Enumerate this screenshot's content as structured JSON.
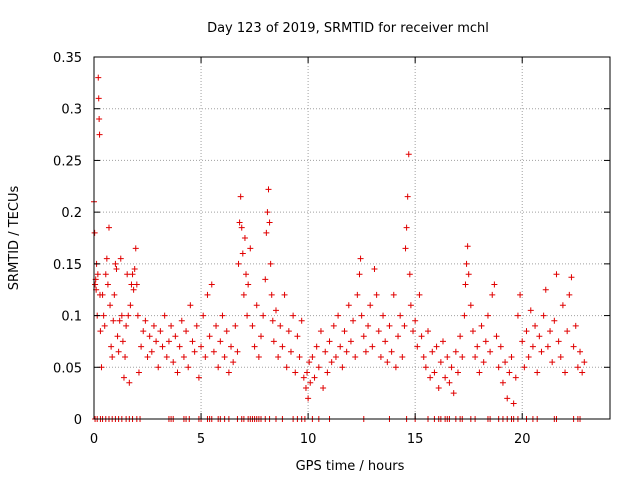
{
  "chart_data": {
    "type": "scatter",
    "title": "Day 123 of 2019, SRMTID for receiver mchl",
    "xlabel": "GPS time / hours",
    "ylabel": "SRMTID / TECUs",
    "xlim": [
      0,
      24.1
    ],
    "ylim": [
      0,
      0.35
    ],
    "xticks": [
      0,
      5,
      10,
      15,
      20
    ],
    "xtick_labels": [
      "0",
      "5",
      "10",
      "15",
      "20"
    ],
    "yticks": [
      0,
      0.05,
      0.1,
      0.15,
      0.2,
      0.25,
      0.3,
      0.35
    ],
    "ytick_labels": [
      "0",
      "0.05",
      "0.1",
      "0.15",
      "0.2",
      "0.25",
      "0.3",
      "0.35"
    ],
    "grid": true,
    "marker": "+",
    "color": "#e00000",
    "series": [
      {
        "name": "SRMTID",
        "points": [
          [
            0.0,
            0.21
          ],
          [
            0.03,
            0.18
          ],
          [
            0.05,
            0.13
          ],
          [
            0.08,
            0.135
          ],
          [
            0.1,
            0.125
          ],
          [
            0.12,
            0.15
          ],
          [
            0.15,
            0.1
          ],
          [
            0.18,
            0.14
          ],
          [
            0.2,
            0.33
          ],
          [
            0.22,
            0.31
          ],
          [
            0.24,
            0.29
          ],
          [
            0.26,
            0.275
          ],
          [
            0.28,
            0.12
          ],
          [
            0.3,
            0.085
          ],
          [
            0.35,
            0.05
          ],
          [
            0.4,
            0.12
          ],
          [
            0.45,
            0.1
          ],
          [
            0.5,
            0.09
          ],
          [
            0.55,
            0.14
          ],
          [
            0.6,
            0.155
          ],
          [
            0.65,
            0.13
          ],
          [
            0.7,
            0.185
          ],
          [
            0.75,
            0.11
          ],
          [
            0.8,
            0.07
          ],
          [
            0.85,
            0.06
          ],
          [
            0.9,
            0.095
          ],
          [
            0.95,
            0.12
          ],
          [
            1.0,
            0.15
          ],
          [
            1.05,
            0.145
          ],
          [
            1.1,
            0.08
          ],
          [
            1.15,
            0.065
          ],
          [
            1.2,
            0.095
          ],
          [
            1.25,
            0.155
          ],
          [
            1.3,
            0.1
          ],
          [
            1.35,
            0.075
          ],
          [
            1.4,
            0.04
          ],
          [
            1.45,
            0.06
          ],
          [
            1.5,
            0.09
          ],
          [
            1.55,
            0.14
          ],
          [
            1.6,
            0.1
          ],
          [
            1.65,
            0.035
          ],
          [
            1.7,
            0.11
          ],
          [
            1.75,
            0.13
          ],
          [
            1.8,
            0.14
          ],
          [
            1.85,
            0.125
          ],
          [
            1.9,
            0.145
          ],
          [
            1.95,
            0.165
          ],
          [
            2.0,
            0.13
          ],
          [
            2.05,
            0.1
          ],
          [
            2.1,
            0.045
          ],
          [
            2.2,
            0.07
          ],
          [
            2.3,
            0.085
          ],
          [
            2.4,
            0.095
          ],
          [
            2.5,
            0.06
          ],
          [
            2.6,
            0.08
          ],
          [
            2.7,
            0.065
          ],
          [
            2.8,
            0.09
          ],
          [
            2.9,
            0.075
          ],
          [
            3.0,
            0.05
          ],
          [
            3.1,
            0.085
          ],
          [
            3.2,
            0.07
          ],
          [
            3.3,
            0.1
          ],
          [
            3.4,
            0.06
          ],
          [
            3.5,
            0.075
          ],
          [
            3.6,
            0.09
          ],
          [
            3.7,
            0.055
          ],
          [
            3.8,
            0.08
          ],
          [
            3.9,
            0.045
          ],
          [
            4.0,
            0.07
          ],
          [
            4.1,
            0.095
          ],
          [
            4.2,
            0.06
          ],
          [
            4.3,
            0.085
          ],
          [
            4.4,
            0.05
          ],
          [
            4.5,
            0.11
          ],
          [
            4.6,
            0.075
          ],
          [
            4.7,
            0.065
          ],
          [
            4.8,
            0.09
          ],
          [
            4.9,
            0.04
          ],
          [
            5.0,
            0.07
          ],
          [
            5.1,
            0.1
          ],
          [
            5.2,
            0.06
          ],
          [
            5.3,
            0.12
          ],
          [
            5.4,
            0.08
          ],
          [
            5.5,
            0.13
          ],
          [
            5.6,
            0.065
          ],
          [
            5.7,
            0.09
          ],
          [
            5.8,
            0.05
          ],
          [
            5.9,
            0.075
          ],
          [
            6.0,
            0.1
          ],
          [
            6.1,
            0.06
          ],
          [
            6.2,
            0.085
          ],
          [
            6.3,
            0.045
          ],
          [
            6.4,
            0.07
          ],
          [
            6.5,
            0.055
          ],
          [
            6.6,
            0.09
          ],
          [
            6.7,
            0.065
          ],
          [
            6.75,
            0.15
          ],
          [
            6.8,
            0.19
          ],
          [
            6.85,
            0.215
          ],
          [
            6.9,
            0.185
          ],
          [
            6.95,
            0.16
          ],
          [
            7.0,
            0.12
          ],
          [
            7.05,
            0.175
          ],
          [
            7.1,
            0.14
          ],
          [
            7.15,
            0.1
          ],
          [
            7.2,
            0.13
          ],
          [
            7.3,
            0.165
          ],
          [
            7.4,
            0.09
          ],
          [
            7.5,
            0.07
          ],
          [
            7.6,
            0.11
          ],
          [
            7.7,
            0.06
          ],
          [
            7.8,
            0.08
          ],
          [
            7.9,
            0.1
          ],
          [
            8.0,
            0.135
          ],
          [
            8.05,
            0.18
          ],
          [
            8.1,
            0.2
          ],
          [
            8.15,
            0.222
          ],
          [
            8.2,
            0.19
          ],
          [
            8.25,
            0.15
          ],
          [
            8.3,
            0.12
          ],
          [
            8.35,
            0.095
          ],
          [
            8.4,
            0.075
          ],
          [
            8.5,
            0.105
          ],
          [
            8.6,
            0.06
          ],
          [
            8.7,
            0.09
          ],
          [
            8.8,
            0.07
          ],
          [
            8.9,
            0.12
          ],
          [
            9.0,
            0.05
          ],
          [
            9.1,
            0.085
          ],
          [
            9.2,
            0.065
          ],
          [
            9.3,
            0.1
          ],
          [
            9.4,
            0.045
          ],
          [
            9.5,
            0.08
          ],
          [
            9.6,
            0.06
          ],
          [
            9.7,
            0.095
          ],
          [
            9.8,
            0.04
          ],
          [
            9.9,
            0.03
          ],
          [
            9.95,
            0.045
          ],
          [
            10.0,
            0.02
          ],
          [
            10.05,
            0.055
          ],
          [
            10.1,
            0.035
          ],
          [
            10.2,
            0.06
          ],
          [
            10.3,
            0.04
          ],
          [
            10.4,
            0.07
          ],
          [
            10.5,
            0.05
          ],
          [
            10.6,
            0.085
          ],
          [
            10.7,
            0.03
          ],
          [
            10.8,
            0.065
          ],
          [
            10.9,
            0.045
          ],
          [
            11.0,
            0.075
          ],
          [
            11.1,
            0.055
          ],
          [
            11.2,
            0.09
          ],
          [
            11.3,
            0.06
          ],
          [
            11.4,
            0.1
          ],
          [
            11.5,
            0.07
          ],
          [
            11.6,
            0.05
          ],
          [
            11.7,
            0.085
          ],
          [
            11.8,
            0.065
          ],
          [
            11.9,
            0.11
          ],
          [
            12.0,
            0.075
          ],
          [
            12.1,
            0.095
          ],
          [
            12.2,
            0.06
          ],
          [
            12.3,
            0.12
          ],
          [
            12.4,
            0.14
          ],
          [
            12.45,
            0.155
          ],
          [
            12.5,
            0.1
          ],
          [
            12.6,
            0.08
          ],
          [
            12.7,
            0.065
          ],
          [
            12.8,
            0.09
          ],
          [
            12.9,
            0.11
          ],
          [
            13.0,
            0.07
          ],
          [
            13.1,
            0.145
          ],
          [
            13.2,
            0.12
          ],
          [
            13.3,
            0.085
          ],
          [
            13.4,
            0.06
          ],
          [
            13.5,
            0.1
          ],
          [
            13.6,
            0.075
          ],
          [
            13.7,
            0.055
          ],
          [
            13.8,
            0.09
          ],
          [
            13.9,
            0.065
          ],
          [
            14.0,
            0.12
          ],
          [
            14.1,
            0.05
          ],
          [
            14.2,
            0.08
          ],
          [
            14.3,
            0.1
          ],
          [
            14.4,
            0.06
          ],
          [
            14.5,
            0.09
          ],
          [
            14.55,
            0.165
          ],
          [
            14.6,
            0.185
          ],
          [
            14.65,
            0.215
          ],
          [
            14.7,
            0.256
          ],
          [
            14.75,
            0.14
          ],
          [
            14.8,
            0.11
          ],
          [
            14.9,
            0.085
          ],
          [
            15.0,
            0.095
          ],
          [
            15.1,
            0.07
          ],
          [
            15.2,
            0.12
          ],
          [
            15.3,
            0.08
          ],
          [
            15.4,
            0.06
          ],
          [
            15.5,
            0.05
          ],
          [
            15.6,
            0.085
          ],
          [
            15.7,
            0.04
          ],
          [
            15.8,
            0.065
          ],
          [
            15.9,
            0.045
          ],
          [
            16.0,
            0.07
          ],
          [
            16.1,
            0.03
          ],
          [
            16.2,
            0.055
          ],
          [
            16.3,
            0.075
          ],
          [
            16.4,
            0.04
          ],
          [
            16.5,
            0.06
          ],
          [
            16.6,
            0.035
          ],
          [
            16.7,
            0.05
          ],
          [
            16.8,
            0.025
          ],
          [
            16.9,
            0.065
          ],
          [
            17.0,
            0.045
          ],
          [
            17.1,
            0.08
          ],
          [
            17.2,
            0.06
          ],
          [
            17.3,
            0.1
          ],
          [
            17.35,
            0.13
          ],
          [
            17.4,
            0.15
          ],
          [
            17.45,
            0.167
          ],
          [
            17.5,
            0.14
          ],
          [
            17.6,
            0.11
          ],
          [
            17.7,
            0.085
          ],
          [
            17.8,
            0.06
          ],
          [
            17.9,
            0.07
          ],
          [
            18.0,
            0.045
          ],
          [
            18.1,
            0.09
          ],
          [
            18.2,
            0.055
          ],
          [
            18.3,
            0.075
          ],
          [
            18.4,
            0.1
          ],
          [
            18.5,
            0.065
          ],
          [
            18.6,
            0.12
          ],
          [
            18.7,
            0.13
          ],
          [
            18.8,
            0.08
          ],
          [
            18.9,
            0.05
          ],
          [
            19.0,
            0.07
          ],
          [
            19.1,
            0.035
          ],
          [
            19.2,
            0.055
          ],
          [
            19.3,
            0.02
          ],
          [
            19.4,
            0.045
          ],
          [
            19.5,
            0.06
          ],
          [
            19.6,
            0.015
          ],
          [
            19.7,
            0.04
          ],
          [
            19.8,
            0.1
          ],
          [
            19.9,
            0.12
          ],
          [
            20.0,
            0.075
          ],
          [
            20.1,
            0.05
          ],
          [
            20.2,
            0.085
          ],
          [
            20.3,
            0.06
          ],
          [
            20.4,
            0.105
          ],
          [
            20.5,
            0.07
          ],
          [
            20.6,
            0.09
          ],
          [
            20.7,
            0.045
          ],
          [
            20.8,
            0.08
          ],
          [
            20.9,
            0.065
          ],
          [
            21.0,
            0.1
          ],
          [
            21.1,
            0.125
          ],
          [
            21.2,
            0.07
          ],
          [
            21.3,
            0.085
          ],
          [
            21.4,
            0.055
          ],
          [
            21.5,
            0.095
          ],
          [
            21.6,
            0.14
          ],
          [
            21.7,
            0.075
          ],
          [
            21.8,
            0.06
          ],
          [
            21.9,
            0.11
          ],
          [
            22.0,
            0.045
          ],
          [
            22.1,
            0.085
          ],
          [
            22.2,
            0.12
          ],
          [
            22.3,
            0.137
          ],
          [
            22.4,
            0.07
          ],
          [
            22.5,
            0.09
          ],
          [
            22.6,
            0.05
          ],
          [
            22.7,
            0.065
          ],
          [
            22.8,
            0.045
          ],
          [
            22.9,
            0.055
          ]
        ],
        "zeros_x": [
          0.05,
          0.15,
          0.3,
          0.4,
          0.55,
          0.7,
          0.85,
          1.0,
          1.15,
          1.3,
          1.5,
          1.65,
          1.8,
          2.0,
          2.15,
          3.5,
          3.6,
          3.7,
          4.2,
          4.3,
          4.45,
          4.9,
          5.0,
          5.3,
          5.4,
          5.5,
          5.8,
          5.9,
          6.1,
          6.3,
          6.7,
          6.9,
          7.0,
          7.2,
          7.3,
          7.4,
          7.5,
          7.6,
          7.7,
          7.8,
          8.0,
          8.2,
          8.5,
          8.8,
          9.3,
          9.5,
          9.7,
          9.85,
          10.2,
          10.5,
          11.0,
          12.6,
          13.8,
          14.6,
          15.0,
          15.6,
          15.9,
          16.1,
          16.2,
          16.4,
          16.5,
          16.6,
          16.9,
          17.1,
          17.2,
          17.6,
          17.8,
          18.4,
          18.5,
          18.9,
          19.1,
          19.3,
          19.5,
          19.6,
          19.8,
          20.2,
          20.5,
          20.7,
          21.5,
          21.6,
          22.4,
          22.6,
          22.7
        ]
      }
    ]
  }
}
